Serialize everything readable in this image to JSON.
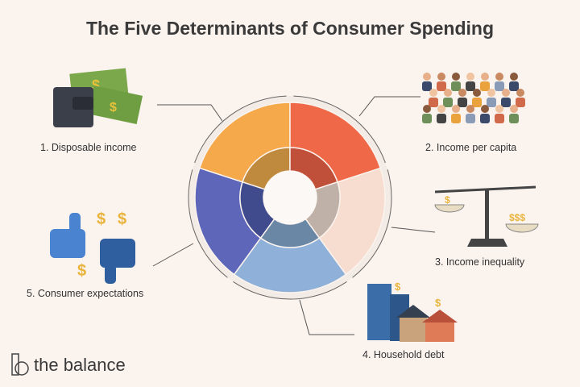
{
  "title": "The Five Determinants of Consumer Spending",
  "determinants": [
    {
      "label": "1. Disposable income",
      "color": "#f5a94a",
      "inner_color": "#c08a3e",
      "icon": "wallet-money-icon"
    },
    {
      "label": "2. Income per capita",
      "color": "#ef6847",
      "inner_color": "#c0503a",
      "icon": "crowd-people-icon"
    },
    {
      "label": "3. Income inequality",
      "color": "#f7ddd0",
      "inner_color": "#bfb1a8",
      "icon": "balance-scale-icon"
    },
    {
      "label": "4. Household debt",
      "color": "#8fb0d8",
      "inner_color": "#6a87a6",
      "icon": "houses-buildings-icon"
    },
    {
      "label": "5. Consumer expectations",
      "color": "#5d66b8",
      "inner_color": "#404b8e",
      "icon": "thumbs-up-down-icon"
    }
  ],
  "logo": {
    "text": "the balance"
  }
}
